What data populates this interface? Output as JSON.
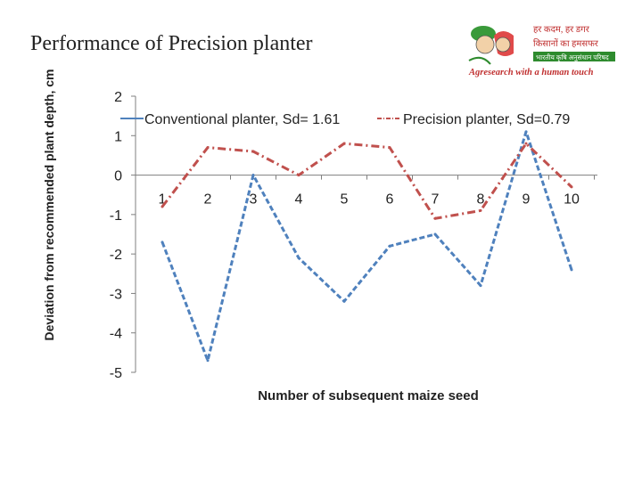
{
  "slide": {
    "title": "Performance of Precision planter"
  },
  "logo": {
    "line1": "हर कदम, हर डगर",
    "line2": "किसानों का हमसफर",
    "line3": "भारतीय कृषि अनुसंधान परिषद",
    "tagline": "Agresearch with a human touch"
  },
  "chart_data": {
    "type": "line",
    "title": "",
    "xlabel": "Number of subsequent maize seed",
    "ylabel": "Deviation from recommended plant depth, cm",
    "x": [
      1,
      2,
      3,
      4,
      5,
      6,
      7,
      8,
      9,
      10
    ],
    "ylim": [
      -5,
      2
    ],
    "yticks": [
      2,
      1,
      0,
      -1,
      -2,
      -3,
      -4,
      -5
    ],
    "grid": false,
    "legend": "top",
    "series": [
      {
        "name": "Conventional planter, Sd= 1.61",
        "values": [
          -1.7,
          -4.7,
          0.0,
          -2.1,
          -3.2,
          -1.8,
          -1.5,
          -2.8,
          1.1,
          -2.4
        ],
        "color": "#4f81bd",
        "dash": "dashed"
      },
      {
        "name": "Precision planter, Sd=0.79",
        "values": [
          -0.8,
          0.7,
          0.6,
          0.0,
          0.8,
          0.7,
          -1.1,
          -0.9,
          0.8,
          -0.3
        ],
        "color": "#c0504d",
        "dash": "dash-dot"
      }
    ]
  }
}
